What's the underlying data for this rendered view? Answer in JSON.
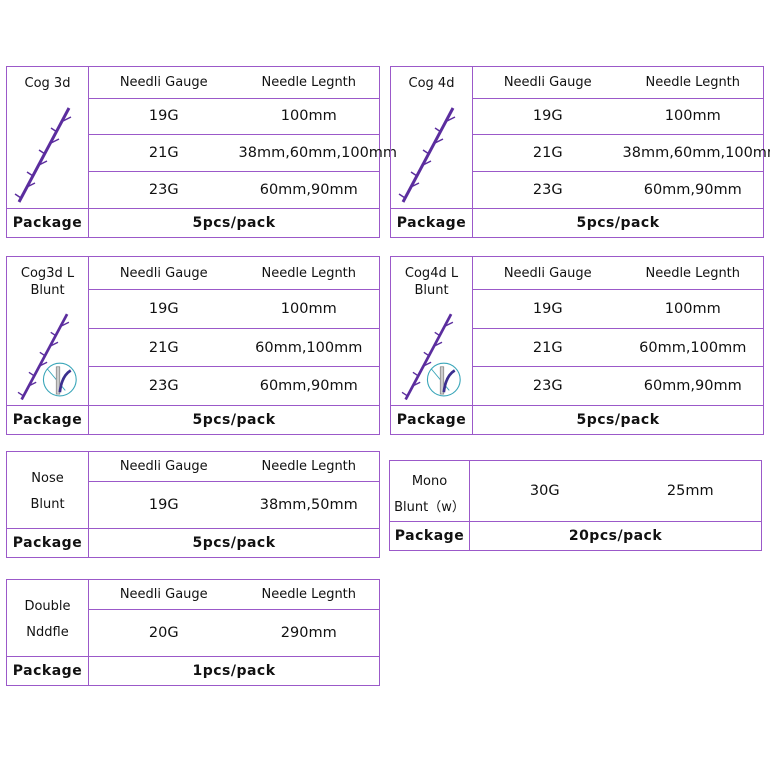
{
  "colors": {
    "border": "#9b59c9",
    "thread": "#5b2d9e",
    "blunt_circle": "#3aa6b9"
  },
  "tables": [
    {
      "name": "Cog  3d",
      "icon": "barbed-thread-icon",
      "header": [
        "Needli  Gauge",
        "Needle  Legnth"
      ],
      "rows": [
        [
          "19G",
          "100mm"
        ],
        [
          "21G",
          "38mm,60mm,100mm"
        ],
        [
          "23G",
          "60mm,90mm"
        ]
      ],
      "package_label": "Package",
      "package": "5pcs/pack"
    },
    {
      "name": "Cog  4d",
      "icon": "barbed-thread-icon",
      "header": [
        "Needli  Gauge",
        "Needle  Legnth"
      ],
      "rows": [
        [
          "19G",
          "100mm"
        ],
        [
          "21G",
          "38mm,60mm,100mm"
        ],
        [
          "23G",
          "60mm,90mm"
        ]
      ],
      "package_label": "Package",
      "package": "5pcs/pack"
    },
    {
      "name": "Cog3d  L",
      "name2": "Blunt",
      "icon": "barbed-thread-blunt-icon",
      "header": [
        "Needli  Gauge",
        "Needle  Legnth"
      ],
      "rows": [
        [
          "19G",
          "100mm"
        ],
        [
          "21G",
          "60mm,100mm"
        ],
        [
          "23G",
          "60mm,90mm"
        ]
      ],
      "package_label": "Package",
      "package": "5pcs/pack"
    },
    {
      "name": "Cog4d  L",
      "name2": "Blunt",
      "icon": "barbed-thread-blunt-icon",
      "header": [
        "Needli  Gauge",
        "Needle  Legnth"
      ],
      "rows": [
        [
          "19G",
          "100mm"
        ],
        [
          "21G",
          "60mm,100mm"
        ],
        [
          "23G",
          "60mm,90mm"
        ]
      ],
      "package_label": "Package",
      "package": "5pcs/pack"
    },
    {
      "name": "Nose",
      "name2": "Blunt",
      "header": [
        "Needli  Gauge",
        "Needle  Legnth"
      ],
      "rows": [
        [
          "19G",
          "38mm,50mm"
        ]
      ],
      "package_label": "Package",
      "package": "5pcs/pack"
    },
    {
      "name": "Mono",
      "name2": "Blunt（w）",
      "rows": [
        [
          "30G",
          "25mm"
        ]
      ],
      "package_label": "Package",
      "package": "20pcs/pack"
    },
    {
      "name": "Double",
      "name2": "Nddfle",
      "header": [
        "Needli  Gauge",
        "Needle  Legnth"
      ],
      "rows": [
        [
          "20G",
          "290mm"
        ]
      ],
      "package_label": "Package",
      "package": "1pcs/pack"
    }
  ]
}
